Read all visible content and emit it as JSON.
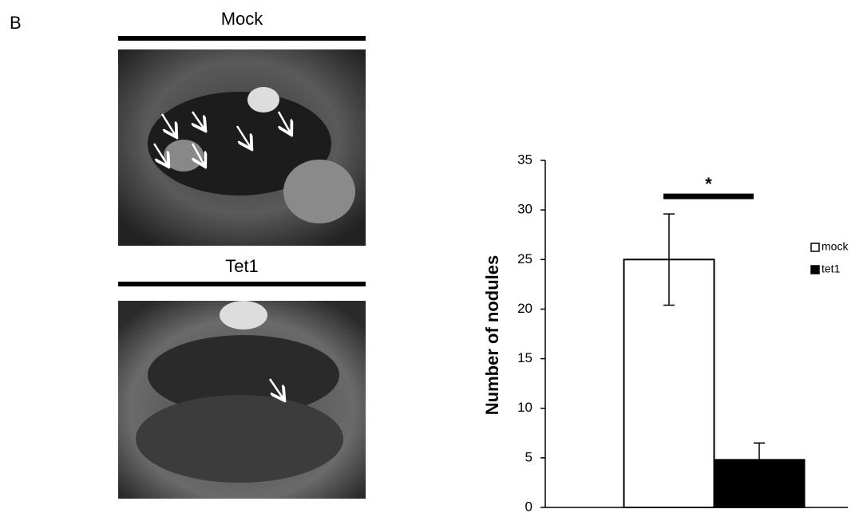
{
  "panel_label": "B",
  "images": [
    {
      "label": "Mock"
    },
    {
      "label": "Tet1"
    }
  ],
  "chart_data": {
    "type": "bar",
    "y_label": "Number of nodules",
    "categories": [
      null
    ],
    "series": [
      {
        "name": "mock",
        "color": "#ffffff",
        "values": [
          25
        ],
        "errors": [
          4.6
        ]
      },
      {
        "name": "tet1",
        "color": "#000000",
        "values": [
          4.8
        ],
        "errors": [
          1.7
        ]
      }
    ],
    "annotation": "*",
    "ylim": [
      0,
      35
    ],
    "yticks": [
      0,
      5,
      10,
      15,
      20,
      25,
      30,
      35
    ],
    "legend": "right",
    "grid": false
  }
}
